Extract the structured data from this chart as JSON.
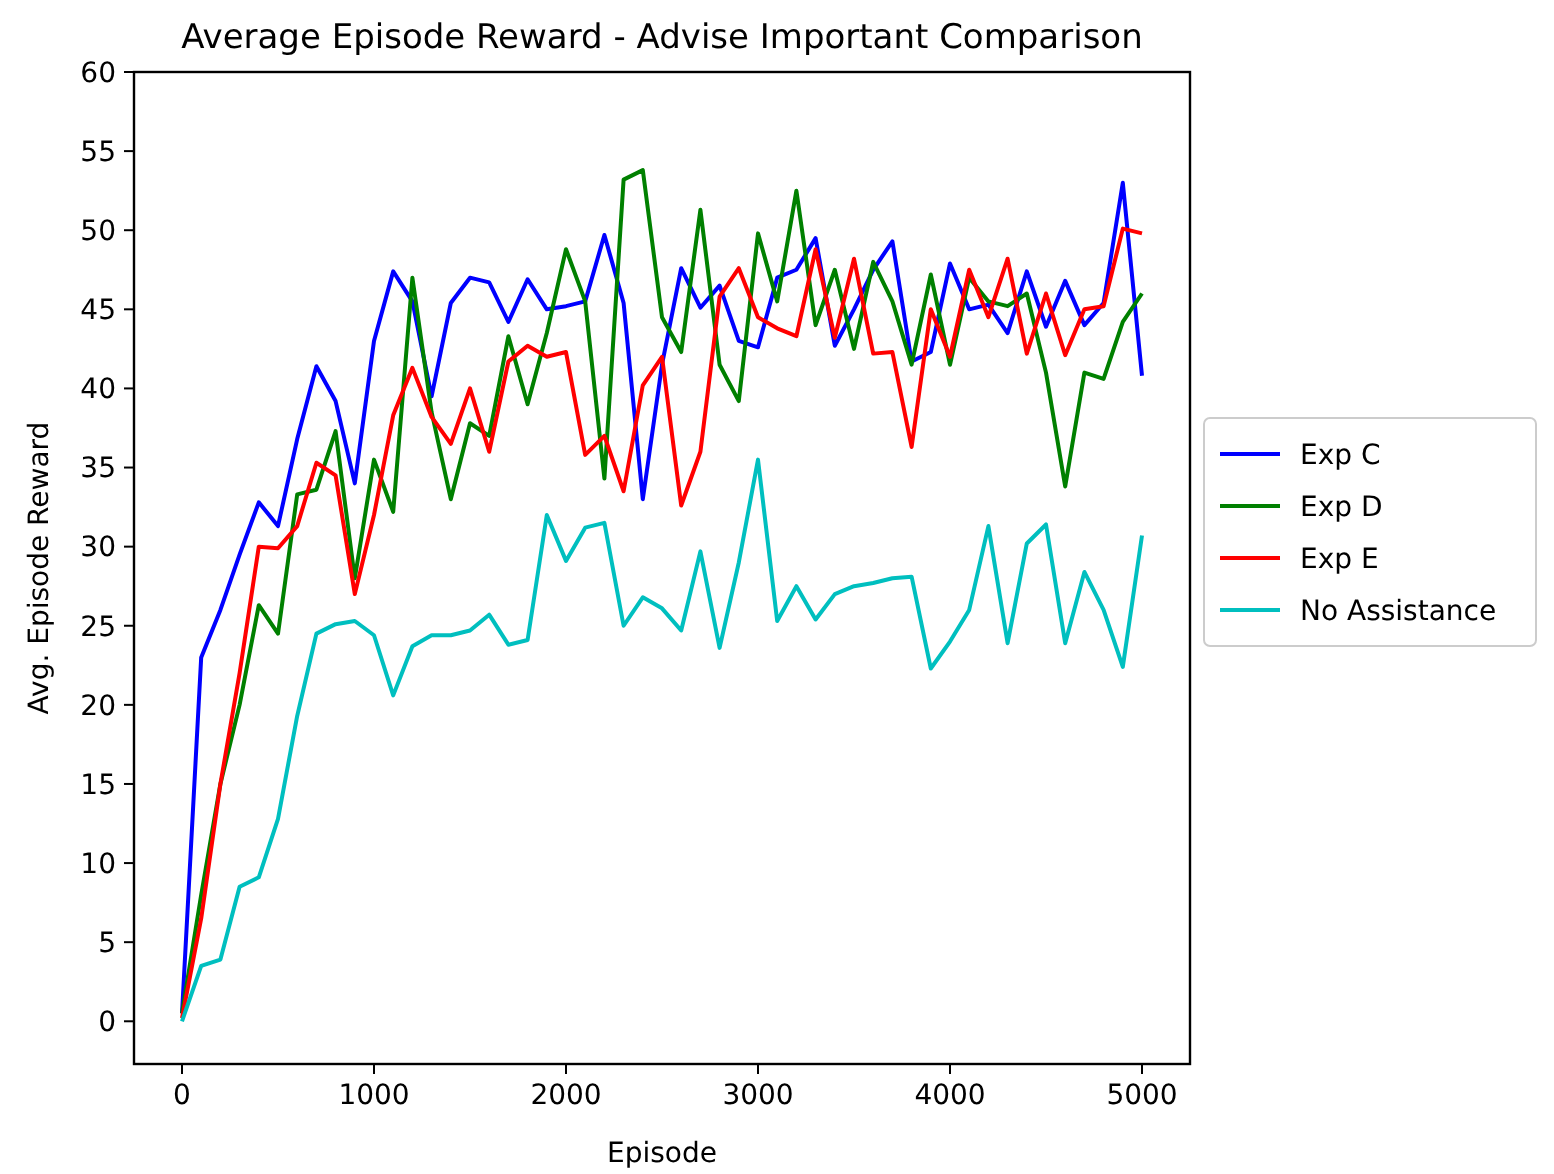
{
  "chart_data": {
    "type": "line",
    "title": "Average Episode Reward - Advise Important Comparison",
    "xlabel": "Episode",
    "ylabel": "Avg. Episode Reward",
    "x": [
      0,
      100,
      200,
      300,
      400,
      500,
      600,
      700,
      800,
      900,
      1000,
      1100,
      1200,
      1300,
      1400,
      1500,
      1600,
      1700,
      1800,
      1900,
      2000,
      2100,
      2200,
      2300,
      2400,
      2500,
      2600,
      2700,
      2800,
      2900,
      3000,
      3100,
      3200,
      3300,
      3400,
      3500,
      3600,
      3700,
      3800,
      3900,
      4000,
      4100,
      4200,
      4300,
      4400,
      4500,
      4600,
      4700,
      4800,
      4900,
      5000
    ],
    "series": [
      {
        "name": "Exp C",
        "color": "#0000ff",
        "values": [
          0.5,
          23,
          26,
          29.5,
          32.8,
          31.3,
          36.8,
          41.4,
          39.2,
          34,
          43,
          47.4,
          45.5,
          39.5,
          45.4,
          47,
          46.7,
          44.2,
          46.9,
          45,
          45.2,
          45.5,
          49.7,
          45.4,
          33,
          41.5,
          47.6,
          45.1,
          46.5,
          43,
          42.6,
          47,
          47.5,
          49.5,
          42.7,
          45,
          47.5,
          49.3,
          41.7,
          42.3,
          47.9,
          45,
          45.3,
          43.5,
          47.4,
          43.9,
          46.8,
          44,
          45.4,
          53,
          40.8
        ]
      },
      {
        "name": "Exp D",
        "color": "#008000",
        "values": [
          0.5,
          8,
          15,
          20,
          26.3,
          24.5,
          33.3,
          33.6,
          37.3,
          28,
          35.5,
          32.2,
          47,
          38.5,
          33,
          37.8,
          37,
          43.3,
          39,
          43.5,
          48.8,
          45.5,
          34.3,
          53.2,
          53.8,
          44.5,
          42.3,
          51.3,
          41.5,
          39.2,
          49.8,
          45.5,
          52.5,
          44,
          47.5,
          42.5,
          48,
          45.5,
          41.5,
          47.2,
          41.5,
          47,
          45.5,
          45.2,
          46,
          41,
          33.8,
          41,
          40.6,
          44.2,
          46
        ]
      },
      {
        "name": "Exp E",
        "color": "#ff0000",
        "values": [
          0.2,
          6.5,
          15,
          22,
          30,
          29.9,
          31.3,
          35.3,
          34.5,
          27,
          32,
          38.3,
          41.3,
          38.2,
          36.5,
          40,
          36,
          41.7,
          42.7,
          42,
          42.3,
          35.8,
          37,
          33.5,
          40.2,
          42,
          32.6,
          36,
          45.8,
          47.6,
          44.5,
          43.8,
          43.3,
          48.8,
          43.2,
          48.2,
          42.2,
          42.3,
          36.3,
          45,
          42,
          47.5,
          44.5,
          48.2,
          42.2,
          46,
          42.1,
          45,
          45.2,
          50.1,
          49.8
        ]
      },
      {
        "name": "No Assistance",
        "color": "#00bfbf",
        "values": [
          0,
          3.5,
          3.9,
          8.5,
          9.1,
          12.8,
          19.3,
          24.5,
          25.1,
          25.3,
          24.4,
          20.6,
          23.7,
          24.4,
          24.4,
          24.7,
          25.7,
          23.8,
          24.1,
          32,
          29.1,
          31.2,
          31.5,
          25,
          26.8,
          26.1,
          24.7,
          29.7,
          23.6,
          29,
          35.5,
          25.3,
          27.5,
          25.4,
          27,
          27.5,
          27.7,
          28,
          28.1,
          22.3,
          24,
          26,
          31.3,
          23.9,
          30.2,
          31.4,
          23.9,
          28.4,
          26,
          22.4,
          30.7
        ]
      }
    ],
    "xlim": [
      -250,
      5250
    ],
    "xticks": [
      0,
      1000,
      2000,
      3000,
      4000,
      5000
    ],
    "ylim": [
      -2.7,
      60
    ],
    "yticks": [
      0,
      5,
      10,
      15,
      20,
      25,
      30,
      35,
      40,
      45,
      50,
      55,
      60
    ],
    "legend": "right",
    "grid": false,
    "marker": "none",
    "line_style": "solid"
  }
}
